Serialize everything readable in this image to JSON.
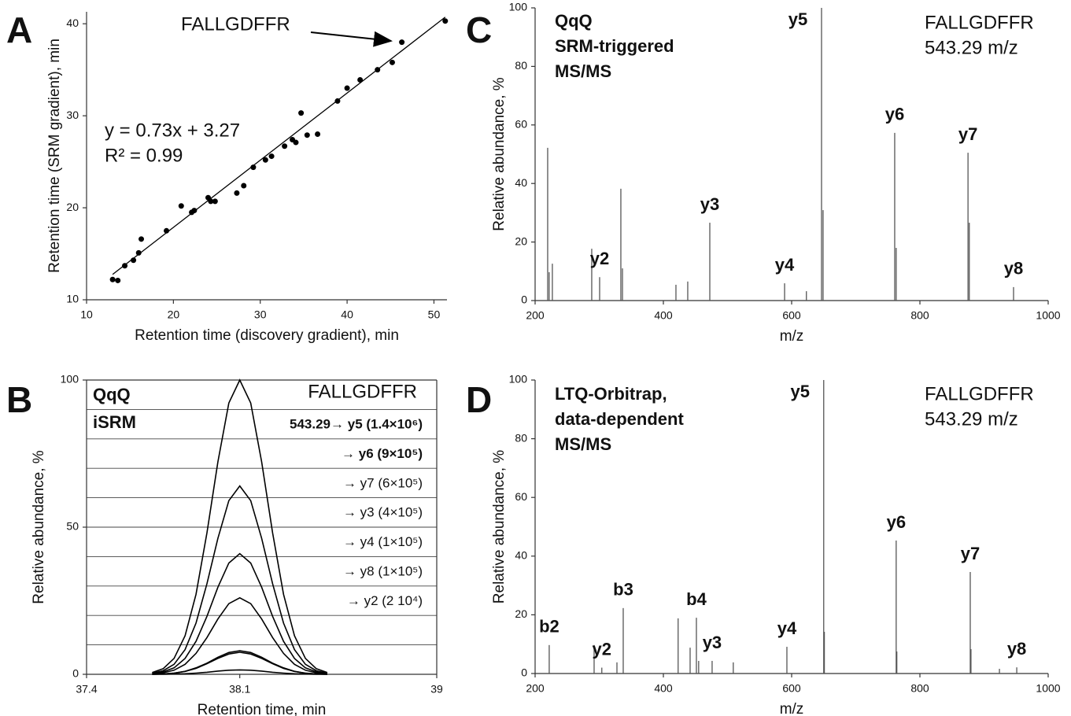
{
  "chart_data": [
    {
      "type": "scatter",
      "panel": "A",
      "xlabel": "Retention time (discovery gradient), min",
      "ylabel": "Retention time (SRM gradient), min",
      "annotation": "FALLGDFFR",
      "equation": "y = 0.73x + 3.27",
      "r2": "R² = 0.99",
      "fit": {
        "slope": 0.73,
        "intercept": 3.27
      },
      "x": [
        13.0,
        13.6,
        14.4,
        15.4,
        16.0,
        16.3,
        19.2,
        20.9,
        22.1,
        22.4,
        24.0,
        24.3,
        24.8,
        27.3,
        28.1,
        29.2,
        30.6,
        31.3,
        32.8,
        33.7,
        34.1,
        34.7,
        35.4,
        36.6,
        38.9,
        40.0,
        41.5,
        43.5,
        45.2,
        46.3,
        51.3
      ],
      "values": [
        12.2,
        12.1,
        13.7,
        14.3,
        15.1,
        16.6,
        17.5,
        20.2,
        19.5,
        19.7,
        21.1,
        20.7,
        20.7,
        21.6,
        22.4,
        24.4,
        25.2,
        25.6,
        26.7,
        27.4,
        27.1,
        30.3,
        27.9,
        28.0,
        31.6,
        33.0,
        33.9,
        35.0,
        35.8,
        38.0,
        40.3
      ],
      "color": "#000000",
      "xlim": [
        10,
        51.5
      ],
      "xticks": [
        10,
        20,
        30,
        40,
        50
      ],
      "ylim": [
        10,
        41.3
      ],
      "yticks": [
        10,
        20,
        30,
        40
      ]
    },
    {
      "type": "line",
      "panel": "B",
      "xlabel": "Retention time, min",
      "ylabel": "Relative abundance, %",
      "label_lines": [
        "QqQ",
        "iSRM"
      ],
      "peptide": "FALLGDFFR",
      "frame": true,
      "grid_values": [
        10,
        20,
        30,
        40,
        50,
        60,
        70,
        80,
        90
      ],
      "x": [
        37.7,
        37.75,
        37.8,
        37.85,
        37.9,
        37.95,
        38.0,
        38.05,
        38.1,
        38.15,
        38.2,
        38.25,
        38.3,
        38.35,
        38.4,
        38.45,
        38.5
      ],
      "series": [
        {
          "name": "543.29→ y5 (1.4×10⁶)",
          "color": "#000000",
          "values": [
            0.6,
            1.9,
            5.4,
            13.1,
            27.2,
            48.1,
            72.2,
            92.2,
            100,
            92.2,
            72.2,
            48.1,
            27.2,
            13.1,
            5.4,
            1.9,
            0.6
          ]
        },
        {
          "name": "→ y6 (9×10⁵)",
          "color": "#000000",
          "values": [
            0.4,
            1.2,
            3.4,
            8.4,
            17.4,
            30.8,
            46.2,
            59.0,
            64,
            59.0,
            46.2,
            30.8,
            17.4,
            8.4,
            3.4,
            1.2,
            0.4
          ]
        },
        {
          "name": "→ y7 (6×10⁵)",
          "color": "#000000",
          "values": [
            0.2,
            0.8,
            2.2,
            5.4,
            11.2,
            19.7,
            29.6,
            37.8,
            41,
            37.8,
            29.6,
            19.7,
            11.2,
            5.4,
            2.2,
            0.8,
            0.2
          ]
        },
        {
          "name": "→ y3 (4×10⁵)",
          "color": "#000000",
          "values": [
            0.1,
            0.5,
            1.4,
            3.4,
            7.1,
            12.5,
            18.8,
            24.0,
            26,
            24.0,
            18.8,
            12.5,
            7.1,
            3.4,
            1.4,
            0.5,
            0.1
          ]
        },
        {
          "name": "→ y4 (1×10⁵)",
          "color": "#000000",
          "values": [
            0,
            0.1,
            0.4,
            1.0,
            2.2,
            3.8,
            5.8,
            7.4,
            8,
            7.4,
            5.8,
            3.8,
            2.2,
            1.0,
            0.4,
            0.1,
            0
          ]
        },
        {
          "name": "→ y8 (1×10⁵)",
          "color": "#000000",
          "values": [
            0,
            0.1,
            0.4,
            1.0,
            2.0,
            3.6,
            5.4,
            6.9,
            7.5,
            6.9,
            5.4,
            3.6,
            2.0,
            1.0,
            0.4,
            0.1,
            0
          ]
        },
        {
          "name": "→ y2 (2 10⁴)",
          "color": "#000000",
          "values": [
            0,
            0,
            0.1,
            0.2,
            0.4,
            0.7,
            1.1,
            1.4,
            1.5,
            1.4,
            1.1,
            0.7,
            0.4,
            0.2,
            0.1,
            0,
            0
          ]
        }
      ],
      "xlim": [
        37.4,
        39
      ],
      "xticks": [
        37.4,
        38.1,
        39
      ],
      "ylim": [
        0,
        100
      ],
      "yticks": [
        0,
        50,
        100
      ]
    },
    {
      "type": "spectrum",
      "panel": "C",
      "xlabel": "m/z",
      "ylabel": "Relative abundance, %",
      "label_lines": [
        "QqQ",
        "SRM-triggered",
        "MS/MS"
      ],
      "peptide": "FALLGDFFR",
      "precursor": "543.29 m/z",
      "x": [
        219.6,
        221.9,
        226.9,
        288.3,
        300.6,
        333.7,
        336.2,
        419.6,
        438,
        472.4,
        589,
        623,
        646.6,
        649,
        760.7,
        763,
        875,
        877,
        946
      ],
      "values": [
        52.2,
        9.7,
        12.6,
        17.7,
        8,
        38.2,
        11,
        5.4,
        6.5,
        26.6,
        5.9,
        3.2,
        100,
        30.9,
        57.3,
        18,
        50.5,
        26.6,
        4.6
      ],
      "peak_labels": [
        null,
        null,
        null,
        null,
        "y2",
        null,
        null,
        null,
        null,
        "y3",
        "y4",
        null,
        "y5",
        null,
        "y6",
        null,
        "y7",
        null,
        "y8"
      ],
      "color": "#555555",
      "xlim": [
        200,
        1000
      ],
      "xticks": [
        200,
        400,
        600,
        800,
        1000
      ],
      "ylim": [
        0,
        100
      ],
      "yticks": [
        0,
        20,
        40,
        60,
        80,
        100
      ]
    },
    {
      "type": "spectrum",
      "panel": "D",
      "xlabel": "m/z",
      "ylabel": "Relative abundance, %",
      "label_lines": [
        "LTQ-Orbitrap,",
        "data-dependent",
        "MS/MS"
      ],
      "peptide": "FALLGDFFR",
      "precursor": "543.29 m/z",
      "x": [
        222,
        292,
        304,
        327.6,
        337.4,
        423,
        441.7,
        451.5,
        455,
        476,
        509,
        592.6,
        650,
        651,
        763,
        764,
        878.5,
        879.6,
        924,
        951
      ],
      "values": [
        9.7,
        9.7,
        2,
        3.8,
        22.3,
        18.8,
        8.8,
        19,
        4.3,
        4.3,
        3.8,
        9.1,
        100,
        14.2,
        45.3,
        7.5,
        34.6,
        8.3,
        1.6,
        2.1
      ],
      "peak_labels": [
        "b2",
        null,
        "y2",
        null,
        "b3",
        null,
        null,
        "b4",
        null,
        "y3",
        null,
        "y4",
        "y5",
        null,
        "y6",
        null,
        "y7",
        null,
        null,
        "y8"
      ],
      "color": "#555555",
      "xlim": [
        200,
        1000
      ],
      "xticks": [
        200,
        400,
        600,
        800,
        1000
      ],
      "ylim": [
        0,
        100
      ],
      "yticks": [
        0,
        20,
        40,
        60,
        80,
        100
      ]
    }
  ]
}
